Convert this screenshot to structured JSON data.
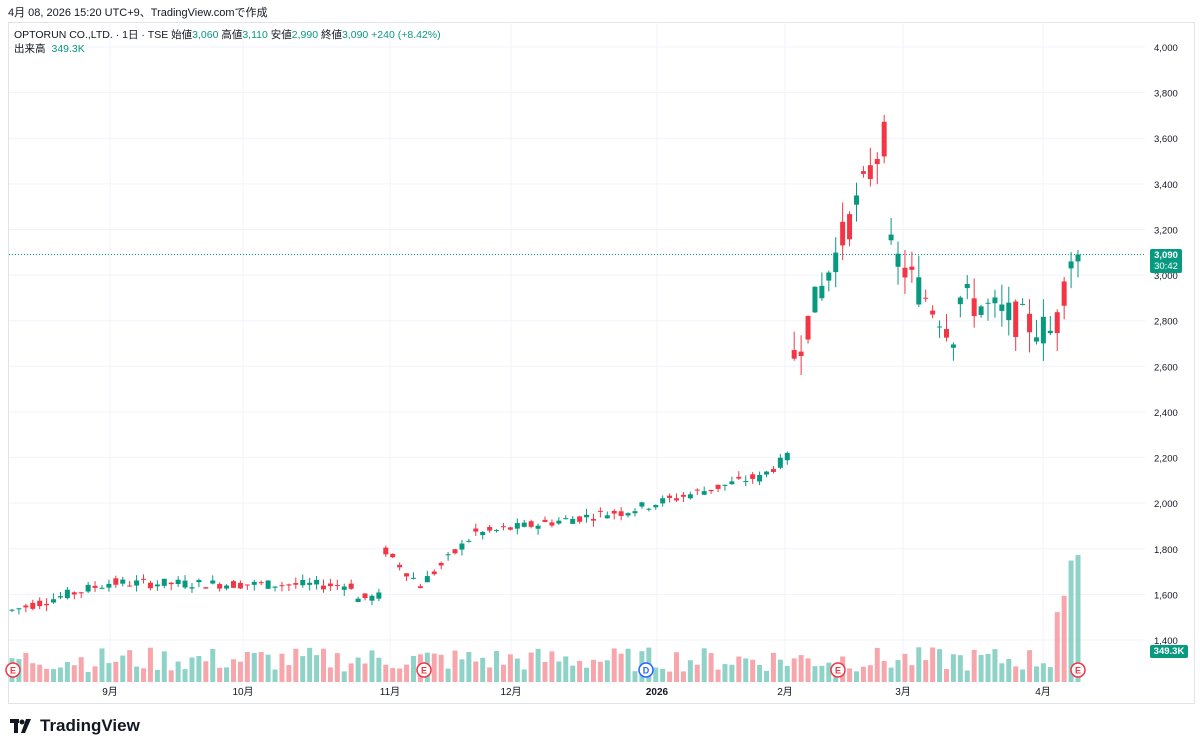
{
  "caption": "4月 08, 2026 15:20 UTC+9、TradingView.comで作成",
  "legend": {
    "symbol": "OPTORUN CO.,LTD. · 1日 · TSE",
    "open_label": "始値",
    "open": "3,060",
    "high_label": "高値",
    "high": "3,110",
    "low_label": "安値",
    "low": "2,990",
    "close_label": "終値",
    "close": "3,090",
    "change": "+240 (+8.42%)",
    "volume_label": "出来高",
    "volume": "349.3K"
  },
  "price_tag": {
    "price": "3,090",
    "countdown": "30:42"
  },
  "volume_tag": "349.3K",
  "brand": "TradingView",
  "colors": {
    "up": "#089981",
    "down": "#f23645",
    "vol_up": "#8fd3c8",
    "vol_down": "#f7a7ac",
    "grid": "#f0f3fa"
  },
  "chart_data": {
    "type": "candlestick",
    "y_axis": {
      "ticks": [
        "1,400",
        "1,600",
        "1,800",
        "2,000",
        "2,200",
        "2,400",
        "2,600",
        "2,800",
        "3,000",
        "3,200",
        "3,400",
        "3,600",
        "3,800",
        "4,000"
      ],
      "range": [
        1300,
        4000
      ]
    },
    "x_axis": {
      "ticks": [
        "9月",
        "10月",
        "11月",
        "12月",
        "2026",
        "2月",
        "3月",
        "4月"
      ]
    },
    "markers": [
      "E",
      "E",
      "E",
      "D",
      "E",
      "E"
    ],
    "last_price": 3090,
    "last_volume": "349.3K",
    "segments": [
      {
        "start": 1530,
        "end": 1650,
        "n": 15,
        "trend": "up"
      },
      {
        "start": 1650,
        "end": 1640,
        "n": 35,
        "trend": "flat"
      },
      {
        "start": 1580,
        "end": 1590,
        "n": 4,
        "trend": "flat"
      },
      {
        "start": 1790,
        "end": 1640,
        "n": 6,
        "trend": "down"
      },
      {
        "start": 1670,
        "end": 1870,
        "n": 8,
        "trend": "up"
      },
      {
        "start": 1870,
        "end": 1960,
        "n": 20,
        "trend": "up"
      },
      {
        "start": 1960,
        "end": 2110,
        "n": 20,
        "trend": "up"
      },
      {
        "start": 2110,
        "end": 2200,
        "n": 5,
        "trend": "up"
      },
      {
        "start": 2650,
        "end": 3600,
        "n": 14,
        "trend": "up"
      },
      {
        "start": 3100,
        "end": 2750,
        "n": 10,
        "trend": "down"
      },
      {
        "start": 2900,
        "end": 2750,
        "n": 14,
        "trend": "flat"
      },
      {
        "start": 2800,
        "end": 3090,
        "n": 3,
        "trend": "up"
      }
    ]
  }
}
